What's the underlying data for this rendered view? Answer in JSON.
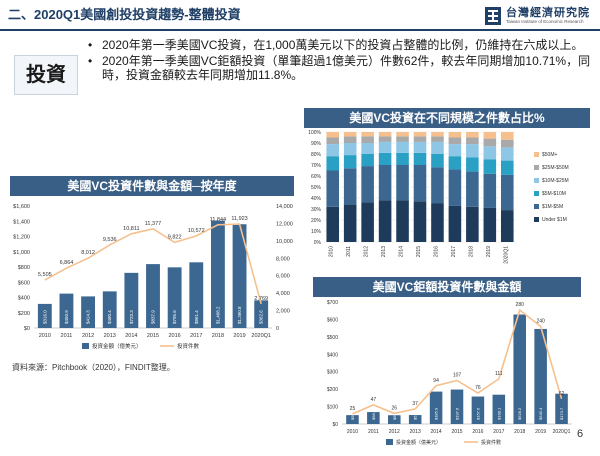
{
  "slide": {
    "title": "二、2020Q1美國創投投資趨勢-整體投資",
    "logo_cn": "台灣經濟研究院",
    "logo_en": "Taiwan Institute of Economic Research",
    "summary_label": "投資",
    "bullets": [
      "2020年第一季美國VC投資，在1,000萬美元以下的投資占整體的比例，仍維持在六成以上。",
      "2020年第一季美國VC鉅額投資（單筆超過1億美元）件數62件，較去年同期增加10.71%，同時，投資金額較去年同期增加11.8%。"
    ],
    "source": "資料來源：Pitchbook（2020），FINDIT整理。",
    "page_number": "6",
    "colors": {
      "navy": "#1f3f66",
      "bar_blue": "#3b6791",
      "line_orange": "#f6c08e",
      "panel_header": "#3a5f87"
    }
  },
  "chart_data": [
    {
      "type": "bar",
      "stacked": true,
      "percent": true,
      "title": "美國VC投資在不同規模之件數占比%",
      "categories": [
        "2010",
        "2011",
        "2012",
        "2013",
        "2014",
        "2015",
        "2016",
        "2017",
        "2018",
        "2019",
        "2020Q1"
      ],
      "ylim": [
        0,
        100
      ],
      "yticks": [
        "0%",
        "10%",
        "20%",
        "30%",
        "40%",
        "50%",
        "60%",
        "70%",
        "80%",
        "90%",
        "100%"
      ],
      "legend_position": "right",
      "series": [
        {
          "name": "Under $1M",
          "color": "#1f3b5b",
          "values": [
            32,
            34,
            36,
            38,
            38,
            37,
            35,
            33,
            32,
            31,
            29
          ]
        },
        {
          "name": "$1M-$5M",
          "color": "#3b6791",
          "values": [
            33,
            33,
            33,
            32,
            32,
            33,
            33,
            33,
            32,
            31,
            32
          ]
        },
        {
          "name": "$5M-$10M",
          "color": "#2aa0c4",
          "values": [
            13,
            12,
            11,
            11,
            11,
            11,
            12,
            12,
            13,
            13,
            13
          ]
        },
        {
          "name": "$10M-$25M",
          "color": "#8ec6e6",
          "values": [
            11,
            11,
            10,
            10,
            10,
            10,
            11,
            11,
            12,
            12,
            12
          ]
        },
        {
          "name": "$25M-$50M",
          "color": "#a9a9a9",
          "values": [
            6,
            6,
            6,
            5,
            5,
            5,
            5,
            6,
            6,
            7,
            7
          ]
        },
        {
          "name": "$50M+",
          "color": "#f6c08e",
          "values": [
            5,
            4,
            4,
            4,
            4,
            4,
            4,
            5,
            5,
            6,
            7
          ]
        }
      ]
    },
    {
      "type": "bar",
      "title": "美國VC投資件數與金額─按年度",
      "categories": [
        "2010",
        "2011",
        "2012",
        "2013",
        "2014",
        "2015",
        "2016",
        "2017",
        "2018",
        "2019",
        "2020Q1"
      ],
      "ylim_left": [
        0,
        1600
      ],
      "yticks_left": [
        "$0",
        "$200",
        "$400",
        "$600",
        "$800",
        "$1,000",
        "$1,200",
        "$1,400",
        "$1,600"
      ],
      "ylim_right": [
        0,
        14000
      ],
      "yticks_right": [
        "0",
        "2,000",
        "4,000",
        "6,000",
        "8,000",
        "10,000",
        "12,000",
        "14,000"
      ],
      "series": [
        {
          "name": "投資金額（億美元）",
          "axis": "left",
          "kind": "bar",
          "color": "#3b6791",
          "values": [
            316.0,
            450.9,
            414.3,
            480.4,
            723.3,
            837.9,
            795.6,
            861.4,
            1408.2,
            1360.8,
            362.6
          ],
          "labels": [
            "$316.0",
            "$450.9",
            "$414.3",
            "$480.4",
            "$723.3",
            "$837.9",
            "$795.6",
            "$861.4",
            "$1,408.2",
            "$1,360.8",
            "$362.6"
          ]
        },
        {
          "name": "投資件數",
          "axis": "right",
          "kind": "line",
          "color": "#f6c08e",
          "values": [
            5505,
            6864,
            8012,
            9536,
            10811,
            11377,
            9822,
            10572,
            11844,
            11923,
            2769
          ],
          "labels": [
            "5,505",
            "6,864",
            "8,012",
            "9,536",
            "10,811",
            "11,377",
            "9,822",
            "10,572",
            "11,844",
            "11,923",
            "2,769"
          ]
        }
      ]
    },
    {
      "type": "bar",
      "title": "美國VC鉅額投資件數與金額",
      "categories": [
        "2010",
        "2011",
        "2012",
        "2013",
        "2014",
        "2015",
        "2016",
        "2017",
        "2018",
        "2019",
        "2020Q1"
      ],
      "ylim_left": [
        0,
        700
      ],
      "yticks_left": [
        "$0",
        "$100",
        "$200",
        "$300",
        "$400",
        "$500",
        "$600",
        "$700"
      ],
      "ylim_right": [
        0,
        300
      ],
      "series": [
        {
          "name": "投資金額（億美元）",
          "axis": "left",
          "kind": "bar",
          "color": "#3b6791",
          "values": [
            50.9,
            68.5,
            50.4,
            51.4,
            185.9,
            197.6,
            157.6,
            168.1,
            628.2,
            545.4,
            173.7
          ],
          "labels": [
            "$50.9",
            "$68.5",
            "$50.4",
            "$51.4",
            "$185.9",
            "$197.6",
            "$157.6",
            "$168.1",
            "$628.2",
            "$545.4",
            "$173.7"
          ]
        },
        {
          "name": "投資件數",
          "axis": "right",
          "kind": "line",
          "color": "#f6c08e",
          "values": [
            25,
            47,
            26,
            37,
            94,
            107,
            76,
            111,
            280,
            240,
            62
          ],
          "labels": [
            "25",
            "47",
            "26",
            "37",
            "94",
            "107",
            "76",
            "111",
            "280",
            "240",
            "62"
          ]
        }
      ]
    }
  ]
}
